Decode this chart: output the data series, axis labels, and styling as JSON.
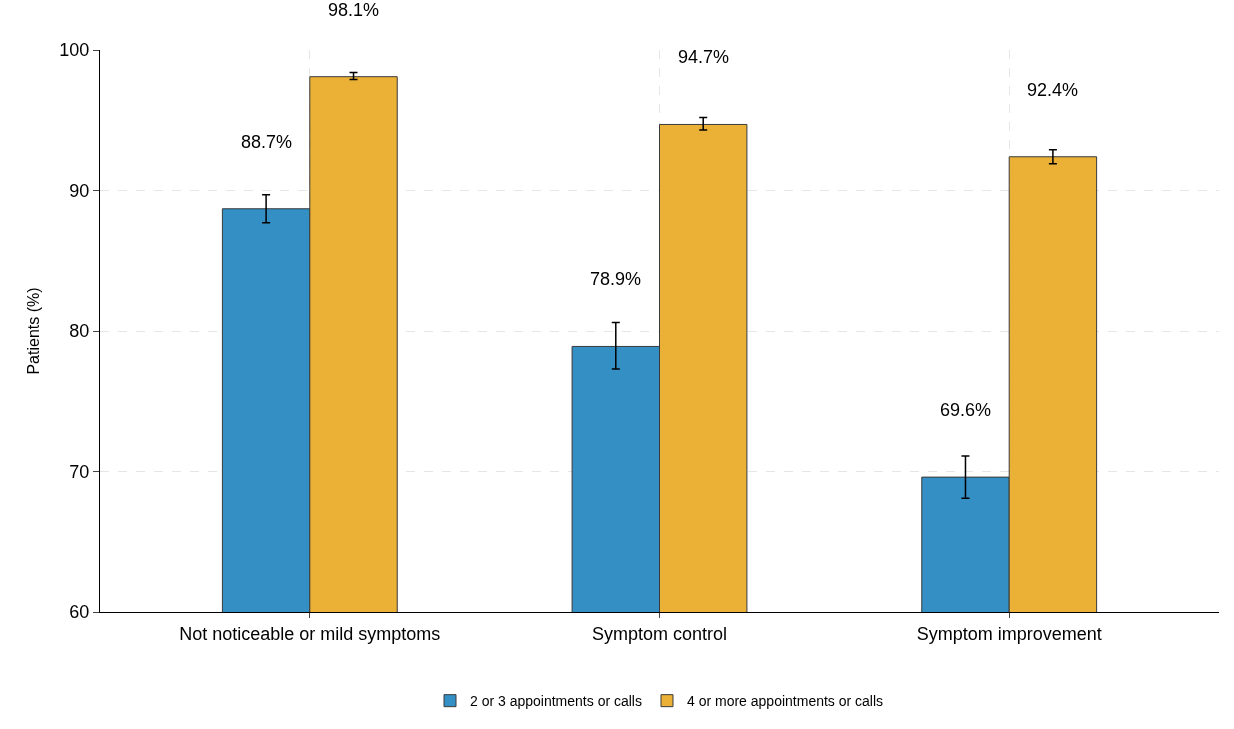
{
  "chart_data": {
    "type": "bar",
    "ylabel": "Patients (%)",
    "categories": [
      "Not noticeable or mild symptoms",
      "Symptom control",
      "Symptom improvement"
    ],
    "series": [
      {
        "name": "2 or 3 appointments or calls",
        "color": "#348fc5",
        "values": [
          88.7,
          78.9,
          69.6
        ],
        "errors": [
          [
            87.7,
            89.7
          ],
          [
            77.3,
            80.6
          ],
          [
            68.1,
            71.1
          ]
        ],
        "value_labels": [
          "88.7%",
          "78.9%",
          "69.6%"
        ]
      },
      {
        "name": "4 or more appointments or calls",
        "color": "#eab136",
        "values": [
          98.1,
          94.7,
          92.4
        ],
        "errors": [
          [
            97.9,
            98.4
          ],
          [
            94.3,
            95.2
          ],
          [
            91.9,
            92.9
          ]
        ],
        "value_labels": [
          "98.1%",
          "94.7%",
          "92.4%"
        ]
      }
    ],
    "ylim": [
      60,
      100
    ],
    "yticks": [
      60,
      70,
      80,
      90,
      100
    ],
    "grid": true,
    "legend": "bottom"
  }
}
